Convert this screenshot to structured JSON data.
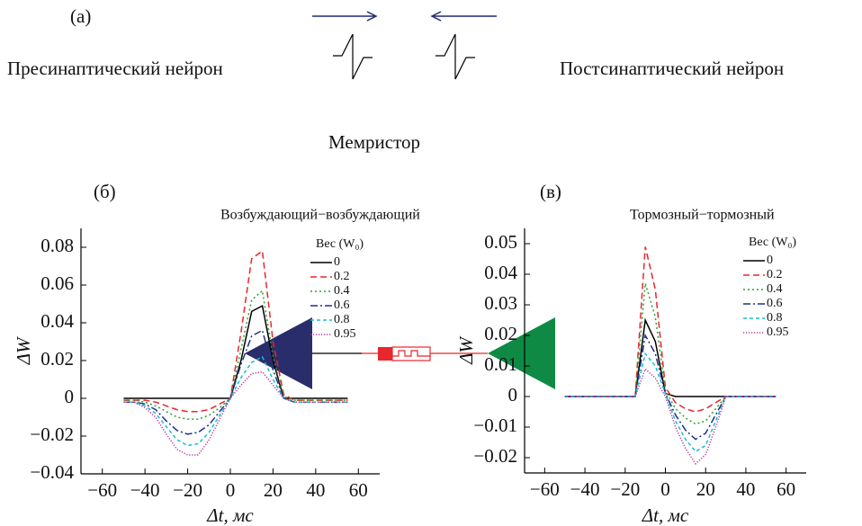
{
  "diagram": {
    "panel_label": "(a)",
    "pre_label": "Пресинаптический нейрон",
    "post_label": "Постсинаптический нейрон",
    "memristor_label": "Мемристор"
  },
  "chart_data": [
    {
      "type": "line",
      "panel_label": "(б)",
      "title": "Возбуждающий−возбуждающий",
      "xlabel": "Δt, мс",
      "ylabel": "ΔW",
      "legend_title": "Вес (W₀)",
      "legend": "upper right",
      "x": [
        -50,
        -45,
        -40,
        -35,
        -30,
        -25,
        -20,
        -15,
        -10,
        -5,
        0,
        5,
        10,
        15,
        20,
        25,
        30,
        35,
        40,
        45,
        50,
        55
      ],
      "xlim": [
        -70,
        70
      ],
      "xticks": [
        {
          "value": -60,
          "label": "−60"
        },
        {
          "value": -40,
          "label": "−40"
        },
        {
          "value": -20,
          "label": "−20"
        },
        0,
        20,
        40,
        60
      ],
      "ylim": [
        -0.04,
        0.09
      ],
      "yticks": [
        {
          "value": -0.04,
          "label": "−0.04"
        },
        {
          "value": -0.02,
          "label": "−0.02"
        },
        0,
        0.02,
        0.04,
        0.06,
        0.08
      ],
      "series": [
        {
          "name": "0",
          "color": "#000000",
          "style": "solid",
          "values": [
            0,
            0,
            0,
            0,
            0,
            0,
            0,
            0,
            0,
            0,
            0,
            0.02,
            0.046,
            0.049,
            0.02,
            0,
            0,
            0,
            0,
            0,
            0,
            0
          ]
        },
        {
          "name": "0.2",
          "color": "#e8262b",
          "style": "dashed",
          "values": [
            -0.001,
            -0.001,
            -0.001,
            -0.002,
            -0.004,
            -0.006,
            -0.007,
            -0.007,
            -0.006,
            -0.003,
            0,
            0.035,
            0.074,
            0.078,
            0.03,
            0.002,
            -0.001,
            -0.001,
            -0.001,
            -0.001,
            -0.001,
            -0.001
          ]
        },
        {
          "name": "0.4",
          "color": "#2ca02c",
          "style": "dotted",
          "values": [
            -0.001,
            -0.001,
            -0.002,
            -0.004,
            -0.007,
            -0.01,
            -0.011,
            -0.011,
            -0.009,
            -0.005,
            0,
            0.026,
            0.052,
            0.057,
            0.022,
            0.001,
            -0.001,
            -0.001,
            -0.001,
            -0.001,
            -0.001,
            -0.001
          ]
        },
        {
          "name": "0.6",
          "color": "#1f2f8a",
          "style": "dashdot",
          "values": [
            -0.002,
            -0.002,
            -0.003,
            -0.006,
            -0.012,
            -0.017,
            -0.019,
            -0.018,
            -0.014,
            -0.007,
            0,
            0.018,
            0.033,
            0.036,
            0.015,
            0,
            -0.002,
            -0.002,
            -0.002,
            -0.002,
            -0.002,
            -0.002
          ]
        },
        {
          "name": "0.8",
          "color": "#17becf",
          "style": "dashed-short",
          "values": [
            -0.002,
            -0.002,
            -0.004,
            -0.008,
            -0.015,
            -0.022,
            -0.025,
            -0.024,
            -0.018,
            -0.009,
            0,
            0.011,
            0.019,
            0.022,
            0.01,
            0,
            -0.002,
            -0.002,
            -0.002,
            -0.002,
            -0.002,
            -0.002
          ]
        },
        {
          "name": "0.95",
          "color": "#c0309c",
          "style": "dotted-fine",
          "values": [
            -0.002,
            -0.002,
            -0.005,
            -0.01,
            -0.019,
            -0.027,
            -0.03,
            -0.03,
            -0.022,
            -0.011,
            0,
            0.007,
            0.013,
            0.014,
            0.007,
            0,
            -0.002,
            -0.002,
            -0.002,
            -0.002,
            -0.002,
            -0.002
          ]
        }
      ]
    },
    {
      "type": "line",
      "panel_label": "(в)",
      "title": "Тормозный−тормозный",
      "xlabel": "Δt, мс",
      "ylabel": "ΔW",
      "legend_title": "Вес (W₀)",
      "legend": "upper right",
      "x": [
        -50,
        -45,
        -40,
        -35,
        -30,
        -25,
        -20,
        -15,
        -10,
        -5,
        0,
        5,
        10,
        15,
        20,
        25,
        30,
        35,
        40,
        45,
        50,
        55
      ],
      "xlim": [
        -70,
        70
      ],
      "xticks": [
        {
          "value": -60,
          "label": "−60"
        },
        {
          "value": -40,
          "label": "−40"
        },
        {
          "value": -20,
          "label": "−20"
        },
        0,
        20,
        40,
        60
      ],
      "ylim": [
        -0.025,
        0.055
      ],
      "yticks": [
        {
          "value": -0.02,
          "label": "−0.02"
        },
        {
          "value": -0.01,
          "label": "−0.01"
        },
        0,
        0.01,
        0.02,
        0.03,
        0.04,
        0.05
      ],
      "series": [
        {
          "name": "0",
          "color": "#000000",
          "style": "solid",
          "values": [
            0,
            0,
            0,
            0,
            0,
            0,
            0,
            0,
            0.025,
            0.018,
            0.001,
            0,
            0,
            0,
            0,
            0,
            0,
            0,
            0,
            0,
            0,
            0
          ]
        },
        {
          "name": "0.2",
          "color": "#e8262b",
          "style": "dashed",
          "values": [
            0,
            0,
            0,
            0,
            0,
            0,
            0,
            0,
            0.049,
            0.035,
            0.003,
            -0.002,
            -0.004,
            -0.005,
            -0.004,
            -0.002,
            0,
            0,
            0,
            0,
            0,
            0
          ]
        },
        {
          "name": "0.4",
          "color": "#2ca02c",
          "style": "dotted",
          "values": [
            0,
            0,
            0,
            0,
            0,
            0,
            0,
            0,
            0.037,
            0.026,
            0.002,
            -0.004,
            -0.007,
            -0.009,
            -0.008,
            -0.004,
            0,
            0,
            0,
            0,
            0,
            0
          ]
        },
        {
          "name": "0.6",
          "color": "#1f2f8a",
          "style": "dashdot",
          "values": [
            0,
            0,
            0,
            0,
            0,
            0,
            0,
            0,
            0.02,
            0.014,
            0.001,
            -0.006,
            -0.011,
            -0.014,
            -0.012,
            -0.006,
            0,
            0,
            0,
            0,
            0,
            0
          ]
        },
        {
          "name": "0.8",
          "color": "#17becf",
          "style": "dashed-short",
          "values": [
            0,
            0,
            0,
            0,
            0,
            0,
            0,
            0,
            0.014,
            0.01,
            0.001,
            -0.008,
            -0.014,
            -0.018,
            -0.016,
            -0.008,
            0,
            0,
            0,
            0,
            0,
            0
          ]
        },
        {
          "name": "0.95",
          "color": "#c0309c",
          "style": "dotted-fine",
          "values": [
            0,
            0,
            0,
            0,
            0,
            0,
            0,
            0,
            0.009,
            0.006,
            0,
            -0.01,
            -0.017,
            -0.022,
            -0.019,
            -0.01,
            0,
            0,
            0,
            0,
            0,
            0
          ]
        }
      ]
    }
  ]
}
